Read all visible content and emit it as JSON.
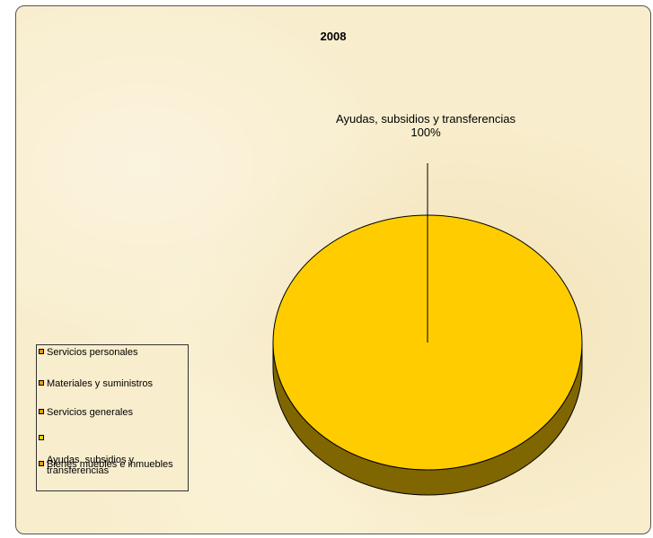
{
  "chart_data": {
    "type": "pie",
    "title": "2008",
    "categories": [
      "Servicios personales",
      "Materiales y suministros",
      "Servicios generales",
      "Ayudas, subsidios y transferencias",
      "Bienes muebles e inmuebles"
    ],
    "values": [
      0,
      0,
      0,
      100,
      0
    ],
    "data_labels": [
      {
        "category": "Ayudas, subsidios y transferencias",
        "text": "Ayudas, subsidios y transferencias",
        "percent": "100%"
      }
    ],
    "legend_placement": "bottom-left",
    "style": "3d-pie",
    "colors": [
      "#ff9900",
      "#ff9900",
      "#ff9900",
      "#ffcc00",
      "#ff9900"
    ],
    "side_color": "#806600",
    "background": "#f8edcc"
  },
  "legend": {
    "items": [
      {
        "label": "Servicios personales",
        "color": "#ff9900"
      },
      {
        "label": "Materiales y suministros",
        "color": "#ff9900"
      },
      {
        "label": "Servicios generales",
        "color": "#ff9900"
      },
      {
        "label": "Ayudas, subsidios y\ntransferencias",
        "color": "#ffcc00"
      },
      {
        "label": "Bienes muebles e inmuebles",
        "color": "#ff9900"
      }
    ]
  },
  "label": {
    "name": "Ayudas, subsidios y transferencias",
    "percent": "100%"
  }
}
